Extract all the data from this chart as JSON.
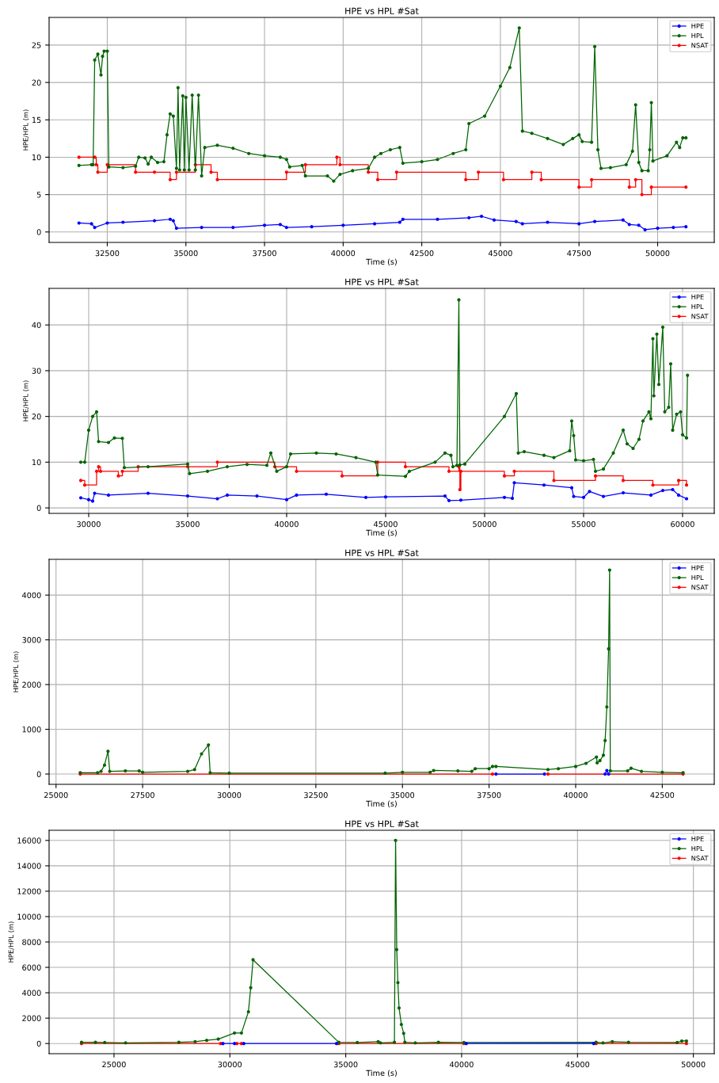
{
  "chart_data": [
    {
      "type": "line",
      "title": "HPE vs HPL #Sat",
      "xlabel": "Time (s)",
      "ylabel": "HPE/HPL (m)",
      "xlim": [
        30650,
        51800
      ],
      "ylim": [
        -1.4,
        28.7
      ],
      "xticks": [
        32500,
        35000,
        37500,
        40000,
        42500,
        45000,
        47500,
        50000
      ],
      "yticks": [
        0,
        5,
        10,
        15,
        20,
        25
      ],
      "grid": true,
      "legend": "top right",
      "marker": "circle",
      "line_style": "solid",
      "series": [
        {
          "name": "HPE",
          "color": "#0000ff",
          "x": [
            31600,
            32000,
            32100,
            32500,
            33000,
            34000,
            34500,
            34600,
            34700,
            35500,
            36500,
            37500,
            38000,
            38200,
            39000,
            40000,
            41000,
            41800,
            41900,
            43000,
            44000,
            44400,
            44800,
            45500,
            45700,
            46500,
            47500,
            48000,
            48900,
            49100,
            49400,
            49600,
            50000,
            50500,
            50900
          ],
          "values": [
            1.2,
            1.1,
            0.6,
            1.2,
            1.3,
            1.5,
            1.7,
            1.5,
            0.5,
            0.6,
            0.6,
            0.9,
            1.0,
            0.6,
            0.7,
            0.9,
            1.1,
            1.3,
            1.7,
            1.7,
            1.9,
            2.1,
            1.6,
            1.4,
            1.1,
            1.3,
            1.1,
            1.4,
            1.6,
            1.0,
            0.9,
            0.3,
            0.5,
            0.6,
            0.7
          ]
        },
        {
          "name": "HPL",
          "color": "#006400",
          "x": [
            31600,
            32000,
            32050,
            32100,
            32200,
            32300,
            32350,
            32400,
            32500,
            32550,
            33000,
            33400,
            33500,
            33700,
            33800,
            33900,
            34100,
            34300,
            34400,
            34500,
            34600,
            34700,
            34750,
            34800,
            34900,
            34950,
            35000,
            35100,
            35200,
            35300,
            35400,
            35500,
            35600,
            36000,
            36500,
            37000,
            37500,
            38000,
            38200,
            38300,
            38700,
            38800,
            39500,
            39700,
            39900,
            40300,
            40800,
            41000,
            41200,
            41500,
            41800,
            41900,
            42500,
            43000,
            43500,
            43900,
            44000,
            44500,
            45000,
            45300,
            45600,
            45700,
            46000,
            46500,
            47000,
            47300,
            47500,
            47600,
            47900,
            48000,
            48100,
            48200,
            48500,
            49000,
            49200,
            49300,
            49400,
            49500,
            49700,
            49750,
            49800,
            49850,
            50300,
            50600,
            50700,
            50800,
            50900
          ],
          "values": [
            8.9,
            9.0,
            9.0,
            23.0,
            23.8,
            21.0,
            23.5,
            24.2,
            24.2,
            8.7,
            8.6,
            8.8,
            10.0,
            9.9,
            9.1,
            10.0,
            9.3,
            9.4,
            13.0,
            15.8,
            15.5,
            8.5,
            19.3,
            8.3,
            18.2,
            8.3,
            18.0,
            8.3,
            18.3,
            8.3,
            18.3,
            7.5,
            11.3,
            11.6,
            11.2,
            10.5,
            10.2,
            10.0,
            9.7,
            8.7,
            8.9,
            7.5,
            7.5,
            6.8,
            7.7,
            8.2,
            8.5,
            10.0,
            10.5,
            11.0,
            11.3,
            9.2,
            9.4,
            9.7,
            10.5,
            11.0,
            14.5,
            15.5,
            19.5,
            22.0,
            27.3,
            13.5,
            13.2,
            12.5,
            11.7,
            12.5,
            13.0,
            12.1,
            12.0,
            24.8,
            11.0,
            8.5,
            8.6,
            9.0,
            10.8,
            17.0,
            9.3,
            8.2,
            8.2,
            11.0,
            17.3,
            9.5,
            10.2,
            12.0,
            11.3,
            12.6,
            12.6
          ]
        },
        {
          "name": "NSAT",
          "color": "#ff0000",
          "type": "step",
          "x": [
            31600,
            32100,
            32150,
            32200,
            32500,
            33400,
            34000,
            34500,
            34700,
            35300,
            35800,
            36000,
            38200,
            38800,
            39800,
            39900,
            40800,
            41100,
            41700,
            43900,
            44300,
            45100,
            46000,
            46300,
            47500,
            47900,
            49100,
            49300,
            49500,
            49800,
            50900
          ],
          "values": [
            10,
            10,
            9,
            8,
            9,
            8,
            8,
            7,
            8,
            9,
            8,
            7,
            8,
            9,
            10,
            9,
            8,
            7,
            8,
            7,
            8,
            7,
            8,
            7,
            6,
            7,
            6,
            7,
            5,
            6,
            6
          ]
        }
      ]
    },
    {
      "type": "line",
      "title": "HPE vs HPL #Sat",
      "xlabel": "Time (s)",
      "ylabel": "HPE/HPL (m)",
      "xlim": [
        28000,
        61600
      ],
      "ylim": [
        -1.2,
        48
      ],
      "xticks": [
        30000,
        35000,
        40000,
        45000,
        50000,
        55000,
        60000
      ],
      "yticks": [
        0,
        10,
        20,
        30,
        40
      ],
      "grid": true,
      "legend": "top right",
      "marker": "circle",
      "line_style": "solid",
      "series": [
        {
          "name": "HPE",
          "color": "#0000ff",
          "x": [
            29600,
            30000,
            30200,
            30300,
            31000,
            33000,
            35000,
            36500,
            37000,
            38500,
            40000,
            40500,
            42000,
            44000,
            45000,
            48000,
            48200,
            48800,
            51000,
            51400,
            51500,
            53000,
            54400,
            54500,
            55000,
            55300,
            56000,
            57000,
            58400,
            59000,
            59500,
            59800,
            60200
          ],
          "values": [
            2.2,
            1.8,
            1.5,
            3.2,
            2.8,
            3.2,
            2.6,
            2.0,
            2.8,
            2.6,
            1.8,
            2.8,
            3.0,
            2.3,
            2.4,
            2.6,
            1.6,
            1.7,
            2.3,
            2.1,
            5.5,
            5.0,
            4.4,
            2.5,
            2.3,
            3.6,
            2.5,
            3.3,
            2.8,
            3.8,
            4.0,
            2.8,
            2.0
          ]
        },
        {
          "name": "HPL",
          "color": "#006400",
          "x": [
            29600,
            29800,
            30000,
            30200,
            30400,
            30500,
            31000,
            31300,
            31700,
            31800,
            33000,
            35000,
            35100,
            36000,
            37000,
            38000,
            39000,
            39200,
            39500,
            40000,
            40200,
            41500,
            42500,
            43500,
            44500,
            44600,
            46000,
            46200,
            47500,
            48000,
            48300,
            48400,
            48600,
            48700,
            48750,
            49000,
            51000,
            51600,
            51700,
            52000,
            53000,
            53500,
            54300,
            54400,
            54500,
            54600,
            55000,
            55500,
            55600,
            56000,
            56500,
            57000,
            57200,
            57500,
            57800,
            58000,
            58300,
            58400,
            58500,
            58550,
            58700,
            58800,
            59000,
            59100,
            59300,
            59400,
            59500,
            59700,
            59900,
            60000,
            60200,
            60250
          ],
          "values": [
            10,
            10,
            17,
            20,
            21,
            14.5,
            14.3,
            15.3,
            15.2,
            8.8,
            9.0,
            9.6,
            7.5,
            8.0,
            9.0,
            9.5,
            9.3,
            12.0,
            8.0,
            9.0,
            11.8,
            12.0,
            11.8,
            11.0,
            10.0,
            7.2,
            6.9,
            8.0,
            10.0,
            12.0,
            11.5,
            9.0,
            9.3,
            45.5,
            9.4,
            9.6,
            20.0,
            25.0,
            12.0,
            12.3,
            11.5,
            11.0,
            12.5,
            19.0,
            15.8,
            10.5,
            10.3,
            10.6,
            8.0,
            8.5,
            12.0,
            17.0,
            14.0,
            13.0,
            15.0,
            19.0,
            21.0,
            19.5,
            37.0,
            24.5,
            38.0,
            27.0,
            39.5,
            21.0,
            22.0,
            31.5,
            17.0,
            20.5,
            21.0,
            16.0,
            15.3,
            29.0
          ]
        },
        {
          "name": "NSAT",
          "color": "#ff0000",
          "type": "step",
          "x": [
            29600,
            29800,
            30400,
            30500,
            30600,
            31500,
            31700,
            32500,
            35000,
            36500,
            39400,
            40500,
            42800,
            44600,
            46000,
            48200,
            48700,
            48750,
            48800,
            51000,
            51500,
            53500,
            55600,
            57000,
            58500,
            59800,
            60200
          ],
          "values": [
            6,
            5,
            8,
            9,
            8,
            7,
            8,
            9,
            9,
            10,
            9,
            8,
            7,
            10,
            9,
            8,
            9,
            4,
            8,
            7,
            8,
            6,
            7,
            6,
            5,
            6,
            5
          ]
        }
      ]
    },
    {
      "type": "line",
      "title": "HPE vs HPL #Sat",
      "xlabel": "Time (s)",
      "ylabel": "HPE/HPL (m)",
      "xlim": [
        24800,
        44000
      ],
      "ylim": [
        -230,
        4800
      ],
      "xticks": [
        25000,
        27500,
        30000,
        32500,
        35000,
        37500,
        40000,
        42500
      ],
      "yticks": [
        0,
        1000,
        2000,
        3000,
        4000
      ],
      "grid": true,
      "legend": "top right",
      "marker": "circle",
      "line_style": "solid",
      "series": [
        {
          "name": "HPE",
          "color": "#0000ff",
          "x": [
            37700,
            39100,
            39150,
            40850,
            40900,
            40950
          ],
          "values": [
            0,
            0,
            null,
            0,
            80,
            0
          ]
        },
        {
          "name": "HPL",
          "color": "#006400",
          "x": [
            25700,
            26200,
            26300,
            26400,
            26500,
            26550,
            27000,
            27400,
            27500,
            28800,
            29000,
            29200,
            29400,
            29450,
            30000,
            34500,
            35000,
            35800,
            35900,
            36600,
            37000,
            37100,
            37500,
            37600,
            37700,
            39200,
            39500,
            40000,
            40300,
            40600,
            40620,
            40700,
            40800,
            40850,
            40900,
            40950,
            40980,
            41000,
            41500,
            41600,
            41900,
            42500,
            43100
          ],
          "values": [
            30,
            30,
            60,
            200,
            510,
            60,
            70,
            70,
            40,
            60,
            100,
            450,
            650,
            30,
            20,
            20,
            40,
            40,
            80,
            70,
            60,
            120,
            120,
            170,
            170,
            100,
            120,
            170,
            240,
            380,
            250,
            300,
            420,
            750,
            1500,
            2800,
            4560,
            70,
            70,
            130,
            60,
            40,
            30
          ]
        },
        {
          "name": "NSAT",
          "color": "#ff0000",
          "type": "step",
          "x": [
            25700,
            37600,
            37650,
            39200,
            43100
          ],
          "values": [
            0,
            0,
            null,
            0,
            0
          ]
        }
      ]
    },
    {
      "type": "line",
      "title": "HPE vs HPL #Sat",
      "xlabel": "Time (s)",
      "ylabel": "HPE/HPL (m)",
      "xlim": [
        22200,
        50900
      ],
      "ylim": [
        -800,
        16800
      ],
      "xticks": [
        25000,
        30000,
        35000,
        40000,
        45000,
        50000
      ],
      "yticks": [
        0,
        2000,
        4000,
        6000,
        8000,
        10000,
        12000,
        14000,
        16000
      ],
      "grid": true,
      "legend": "top right",
      "marker": "circle",
      "line_style": "solid",
      "series": [
        {
          "name": "HPE",
          "color": "#0000ff",
          "x": [
            29700,
            30200,
            30250,
            30600,
            34600,
            34650,
            40200,
            45700
          ],
          "values": [
            0,
            0,
            null,
            0,
            0,
            null,
            0,
            0
          ]
        },
        {
          "name": "HPL",
          "color": "#006400",
          "x": [
            23600,
            24200,
            24600,
            25500,
            27800,
            28500,
            29000,
            29500,
            30200,
            30500,
            30800,
            30900,
            31000,
            34700,
            35500,
            36400,
            36500,
            37100,
            37150,
            37200,
            37250,
            37300,
            37400,
            37500,
            37550,
            38000,
            39000,
            40100,
            45800,
            46100,
            46500,
            47200,
            49300,
            49500,
            49700
          ],
          "values": [
            100,
            100,
            80,
            50,
            100,
            150,
            250,
            350,
            830,
            830,
            2500,
            4400,
            6600,
            100,
            80,
            150,
            50,
            100,
            16000,
            7400,
            4800,
            2800,
            1500,
            800,
            100,
            50,
            100,
            80,
            100,
            50,
            150,
            100,
            80,
            200,
            200
          ]
        },
        {
          "name": "NSAT",
          "color": "#ff0000",
          "type": "step",
          "x": [
            23600,
            29600,
            29650,
            30300,
            30500,
            30550,
            34700,
            40100,
            40150,
            45800,
            49700
          ],
          "values": [
            0,
            0,
            null,
            0,
            0,
            null,
            0,
            0,
            null,
            0,
            0
          ]
        }
      ]
    }
  ]
}
